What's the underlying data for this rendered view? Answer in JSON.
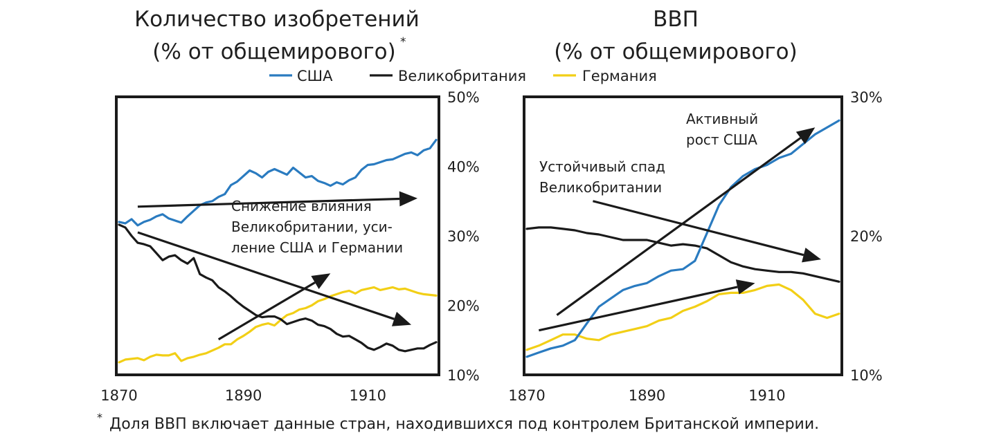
{
  "colors": {
    "usa": "#2A7BC0",
    "uk": "#1A1A1A",
    "germany": "#F2CF16",
    "frame": "#1A1A1A",
    "text": "#1F1F1F"
  },
  "legend": [
    {
      "key": "usa",
      "label": "США"
    },
    {
      "key": "uk",
      "label": "Великобритания"
    },
    {
      "key": "germany",
      "label": "Германия"
    }
  ],
  "footnote": "Доля ВВП включает данные стран, находившихся под контролем Британской империи.",
  "footnote_marker": "*",
  "chart_data": [
    {
      "type": "line",
      "title": [
        "Количество изобретений",
        "(% от общемирового)"
      ],
      "title_marker": "*",
      "xlabel": "",
      "ylabel": "",
      "xlim": [
        1870,
        1921
      ],
      "ylim": [
        10,
        50
      ],
      "x_ticks": [
        1870,
        1890,
        1910
      ],
      "x_tick_labels": [
        "1870",
        "1890",
        "1910"
      ],
      "y_ticks": [
        10,
        20,
        30,
        40,
        50
      ],
      "y_tick_labels": [
        "10%",
        "20%",
        "30%",
        "40%",
        "50%"
      ],
      "y_axis_side": "right",
      "series": [
        {
          "name": "США",
          "key": "usa",
          "x": [
            1870,
            1871,
            1872,
            1873,
            1874,
            1875,
            1876,
            1877,
            1878,
            1879,
            1880,
            1881,
            1882,
            1883,
            1884,
            1885,
            1886,
            1887,
            1888,
            1889,
            1890,
            1891,
            1892,
            1893,
            1894,
            1895,
            1896,
            1897,
            1898,
            1899,
            1900,
            1901,
            1902,
            1903,
            1904,
            1905,
            1906,
            1907,
            1908,
            1909,
            1910,
            1911,
            1912,
            1913,
            1914,
            1915,
            1916,
            1917,
            1918,
            1919,
            1920,
            1921
          ],
          "y": [
            32,
            31.8,
            32.4,
            31.5,
            32,
            32.3,
            32.8,
            33.1,
            32.5,
            32.2,
            31.9,
            32.8,
            33.6,
            34.4,
            34.8,
            35,
            35.6,
            36,
            37.3,
            37.8,
            38.6,
            39.4,
            39,
            38.4,
            39.2,
            39.6,
            39.2,
            38.8,
            39.8,
            39.1,
            38.4,
            38.6,
            37.9,
            37.6,
            37.2,
            37.7,
            37.4,
            38,
            38.4,
            39.5,
            40.2,
            40.3,
            40.6,
            40.9,
            41,
            41.4,
            41.8,
            42,
            41.6,
            42.3,
            42.6,
            43.8
          ]
        },
        {
          "name": "Великобритания",
          "key": "uk",
          "x": [
            1870,
            1871,
            1872,
            1873,
            1874,
            1875,
            1876,
            1877,
            1878,
            1879,
            1880,
            1881,
            1882,
            1883,
            1884,
            1885,
            1886,
            1887,
            1888,
            1889,
            1890,
            1891,
            1892,
            1893,
            1894,
            1895,
            1896,
            1897,
            1898,
            1899,
            1900,
            1901,
            1902,
            1903,
            1904,
            1905,
            1906,
            1907,
            1908,
            1909,
            1910,
            1911,
            1912,
            1913,
            1914,
            1915,
            1916,
            1917,
            1918,
            1919,
            1920,
            1921
          ],
          "y": [
            31.6,
            31.2,
            30,
            29,
            28.8,
            28.5,
            27.5,
            26.5,
            27,
            27.2,
            26.5,
            26,
            26.8,
            24.5,
            24,
            23.6,
            22.6,
            22,
            21.3,
            20.5,
            19.8,
            19.2,
            18.6,
            18.3,
            18.4,
            18.4,
            18,
            17.3,
            17.6,
            17.9,
            18.1,
            17.8,
            17.2,
            17,
            16.6,
            15.9,
            15.5,
            15.6,
            15.1,
            14.6,
            13.9,
            13.6,
            14,
            14.5,
            14.2,
            13.6,
            13.4,
            13.6,
            13.8,
            13.8,
            14.3,
            14.7
          ]
        },
        {
          "name": "Германия",
          "key": "germany",
          "x": [
            1870,
            1871,
            1872,
            1873,
            1874,
            1875,
            1876,
            1877,
            1878,
            1879,
            1880,
            1881,
            1882,
            1883,
            1884,
            1885,
            1886,
            1887,
            1888,
            1889,
            1890,
            1891,
            1892,
            1893,
            1894,
            1895,
            1896,
            1897,
            1898,
            1899,
            1900,
            1901,
            1902,
            1903,
            1904,
            1905,
            1906,
            1907,
            1908,
            1909,
            1910,
            1911,
            1912,
            1913,
            1914,
            1915,
            1916,
            1917,
            1918,
            1919,
            1920,
            1921
          ],
          "y": [
            11.8,
            12.2,
            12.3,
            12.4,
            12.1,
            12.6,
            12.9,
            12.8,
            12.8,
            13.1,
            12,
            12.4,
            12.6,
            12.9,
            13.1,
            13.5,
            13.9,
            14.4,
            14.4,
            15.1,
            15.6,
            16.2,
            16.9,
            17.2,
            17.4,
            17.1,
            17.9,
            18.6,
            18.9,
            19.4,
            19.6,
            20,
            20.6,
            20.9,
            21.3,
            21.6,
            21.9,
            22.1,
            21.7,
            22.2,
            22.4,
            22.6,
            22.2,
            22.4,
            22.6,
            22.3,
            22.4,
            22.1,
            21.8,
            21.6,
            21.5,
            21.4
          ]
        }
      ],
      "trend_arrows": [
        {
          "from": [
            1873,
            34.2
          ],
          "to": [
            1918,
            35.4
          ]
        },
        {
          "from": [
            1873,
            30.5
          ],
          "to": [
            1917,
            17.2
          ]
        },
        {
          "from": [
            1886,
            15.1
          ],
          "to": [
            1904,
            24.6
          ]
        }
      ],
      "annotations": [
        {
          "lines": [
            "Снижение влияния",
            "Великобритании, уси-",
            "ление США и Германии"
          ]
        }
      ]
    },
    {
      "type": "line",
      "title": [
        "ВВП",
        "(% от общемирового)"
      ],
      "xlabel": "",
      "ylabel": "",
      "xlim": [
        1870,
        1922
      ],
      "ylim": [
        10,
        30
      ],
      "x_ticks": [
        1870,
        1890,
        1910
      ],
      "x_tick_labels": [
        "1870",
        "1890",
        "1910"
      ],
      "y_ticks": [
        10,
        20,
        30
      ],
      "y_tick_labels": [
        "10%",
        "20%",
        "30%"
      ],
      "y_axis_side": "right",
      "series": [
        {
          "name": "США",
          "key": "usa",
          "x": [
            1870,
            1872,
            1874,
            1876,
            1878,
            1880,
            1882,
            1884,
            1886,
            1888,
            1890,
            1892,
            1894,
            1896,
            1898,
            1900,
            1902,
            1904,
            1906,
            1908,
            1910,
            1912,
            1914,
            1916,
            1918,
            1920,
            1922
          ],
          "y": [
            11.3,
            11.6,
            11.9,
            12.1,
            12.5,
            13.7,
            14.9,
            15.5,
            16.1,
            16.4,
            16.6,
            17.1,
            17.5,
            17.6,
            18.2,
            20.2,
            22.2,
            23.5,
            24.3,
            24.8,
            25.1,
            25.6,
            25.9,
            26.6,
            27.3,
            27.8,
            28.3
          ]
        },
        {
          "name": "Великобритания",
          "key": "uk",
          "x": [
            1870,
            1872,
            1874,
            1876,
            1878,
            1880,
            1882,
            1884,
            1886,
            1888,
            1890,
            1892,
            1894,
            1896,
            1898,
            1900,
            1902,
            1904,
            1906,
            1908,
            1910,
            1912,
            1914,
            1916,
            1918,
            1920,
            1922
          ],
          "y": [
            20.5,
            20.6,
            20.6,
            20.5,
            20.4,
            20.2,
            20.1,
            19.9,
            19.7,
            19.7,
            19.7,
            19.5,
            19.3,
            19.4,
            19.3,
            19.1,
            18.6,
            18.1,
            17.8,
            17.6,
            17.5,
            17.4,
            17.4,
            17.3,
            17.1,
            16.9,
            16.7
          ]
        },
        {
          "name": "Германия",
          "key": "germany",
          "x": [
            1870,
            1872,
            1874,
            1876,
            1878,
            1880,
            1882,
            1884,
            1886,
            1888,
            1890,
            1892,
            1894,
            1896,
            1898,
            1900,
            1902,
            1904,
            1906,
            1908,
            1910,
            1912,
            1914,
            1916,
            1918,
            1920,
            1922
          ],
          "y": [
            11.8,
            12.1,
            12.5,
            12.9,
            12.9,
            12.6,
            12.5,
            12.9,
            13.1,
            13.3,
            13.5,
            13.9,
            14.1,
            14.6,
            14.9,
            15.3,
            15.8,
            15.9,
            15.9,
            16.1,
            16.4,
            16.5,
            16.1,
            15.4,
            14.4,
            14.1,
            14.4
          ]
        }
      ],
      "trend_arrows": [
        {
          "from": [
            1875,
            14.3
          ],
          "to": [
            1918,
            27.8
          ]
        },
        {
          "from": [
            1872,
            13.2
          ],
          "to": [
            1908,
            16.6
          ]
        },
        {
          "from": [
            1881,
            22.5
          ],
          "to": [
            1919,
            18.3
          ]
        }
      ],
      "annotations": [
        {
          "lines": [
            "Активный",
            "рост США"
          ]
        },
        {
          "lines": [
            "Устойчивый спад",
            "Великобритании"
          ]
        }
      ]
    }
  ]
}
